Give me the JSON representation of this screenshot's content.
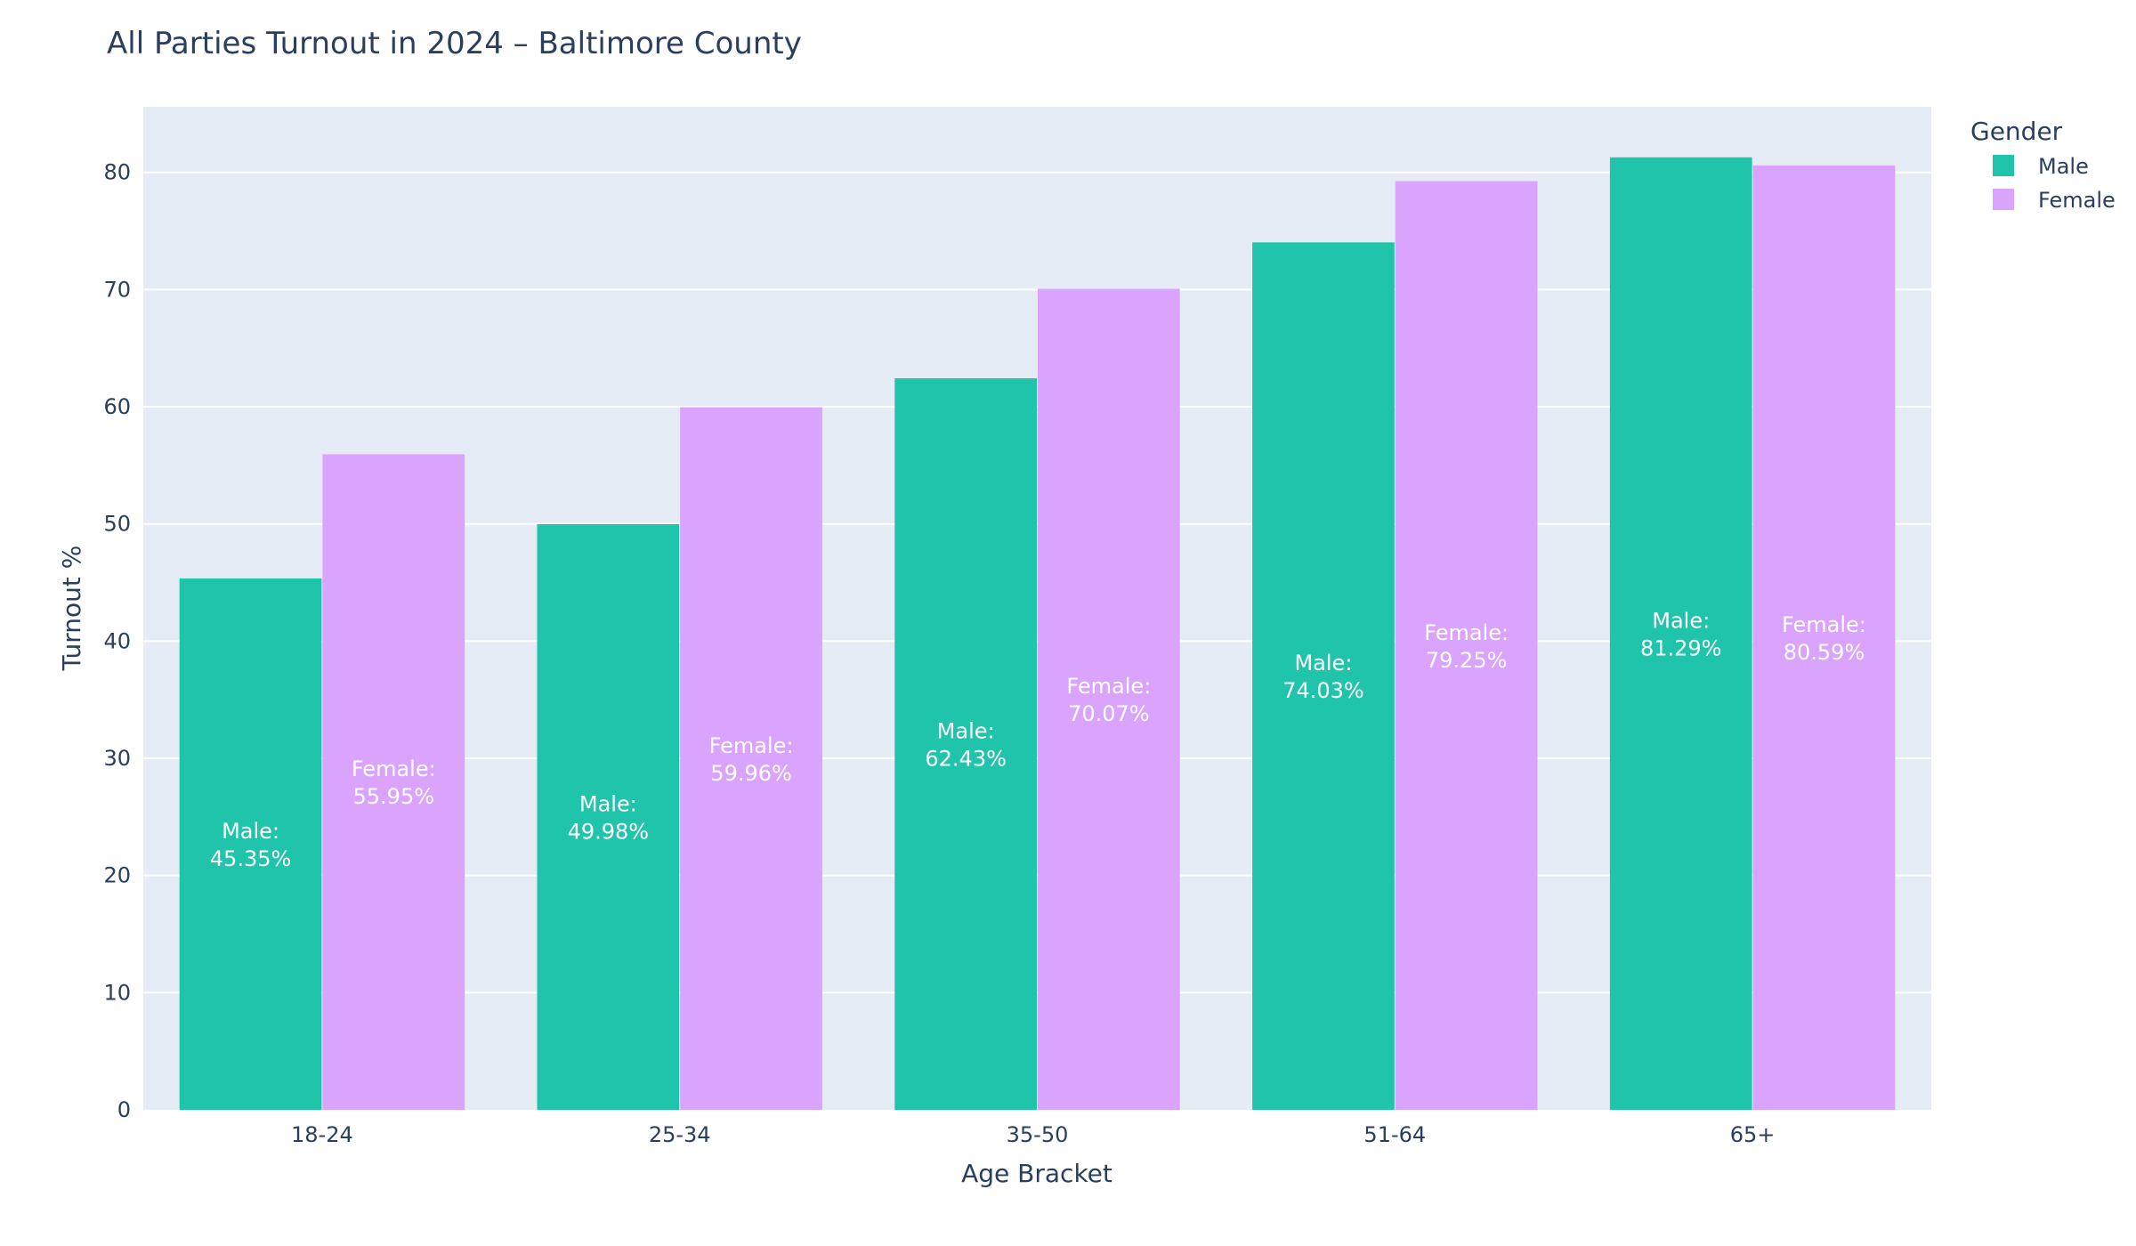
{
  "chart_data": {
    "type": "bar",
    "title": "All Parties Turnout in 2024 – Baltimore County",
    "xlabel": "Age Bracket",
    "ylabel": "Turnout %",
    "categories": [
      "18-24",
      "25-34",
      "35-50",
      "51-64",
      "65+"
    ],
    "ylim": [
      0,
      85.6
    ],
    "yticks": [
      0,
      10,
      20,
      30,
      40,
      50,
      60,
      70,
      80
    ],
    "grid": true,
    "legend": {
      "title": "Gender",
      "placement": "top-right"
    },
    "series": [
      {
        "name": "Male",
        "color": "#20c4aa",
        "values": [
          45.35,
          49.98,
          62.43,
          74.03,
          81.29
        ],
        "labels": [
          [
            "Male:",
            "45.35%"
          ],
          [
            "Male:",
            "49.98%"
          ],
          [
            "Male:",
            "62.43%"
          ],
          [
            "Male:",
            "74.03%"
          ],
          [
            "Male:",
            "81.29%"
          ]
        ]
      },
      {
        "name": "Female",
        "color": "#daa3fd",
        "values": [
          55.95,
          59.96,
          70.07,
          79.25,
          80.59
        ],
        "labels": [
          [
            "Female:",
            "55.95%"
          ],
          [
            "Female:",
            "59.96%"
          ],
          [
            "Female:",
            "70.07%"
          ],
          [
            "Female:",
            "79.25%"
          ],
          [
            "Female:",
            "80.59%"
          ]
        ]
      }
    ],
    "colors": {
      "plot_bg": "#e5ecf6",
      "grid": "#ffffff",
      "text": "#2a3f5f"
    }
  }
}
